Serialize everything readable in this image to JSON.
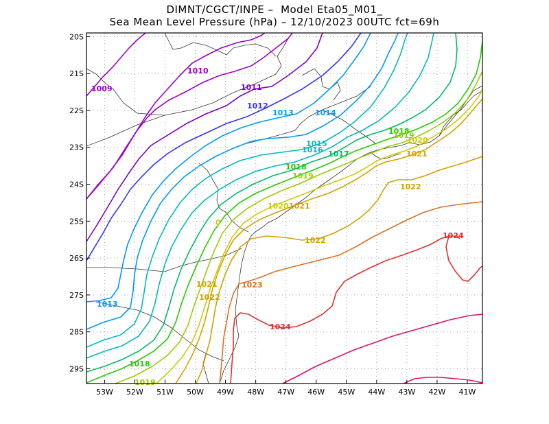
{
  "title_line1": "DIMNT/CGCT/INPE –  Model Eta05_M01_",
  "title_line2": "Sea Mean Level Pressure (hPa) – 12/10/2023 00UTC fct=69h",
  "chart_data": {
    "type": "contour",
    "variable": "Sea Mean Level Pressure",
    "units": "hPa",
    "model": "Eta05_M01_",
    "run": "12/10/2023 00UTC",
    "forecast_hour": "69h",
    "lon_range": [
      -53.6,
      -40.5
    ],
    "lat_range": [
      -29.4,
      -19.9
    ],
    "x_ticks": [
      "53W",
      "52W",
      "51W",
      "50W",
      "49W",
      "48W",
      "47W",
      "46W",
      "45W",
      "44W",
      "43W",
      "42W",
      "41W"
    ],
    "y_ticks": [
      "20S",
      "21S",
      "22S",
      "23S",
      "24S",
      "25S",
      "26S",
      "27S",
      "28S",
      "29S"
    ],
    "contour_labels": [
      {
        "text": "1009",
        "color": "#9900cc"
      },
      {
        "text": "1010",
        "color": "#9900cc"
      },
      {
        "text": "1011",
        "color": "#7a00cc"
      },
      {
        "text": "1012",
        "color": "#3333ff"
      },
      {
        "text": "1013",
        "color": "#0099ff"
      },
      {
        "text": "1014",
        "color": "#0099ff"
      },
      {
        "text": "1015",
        "color": "#00bbbb"
      },
      {
        "text": "1016",
        "color": "#00bbbb"
      },
      {
        "text": "1017",
        "color": "#00bb66"
      },
      {
        "text": "1018",
        "color": "#22cc00"
      },
      {
        "text": "1019",
        "color": "#99cc00"
      },
      {
        "text": "1020",
        "color": "#cccc00"
      },
      {
        "text": "1021",
        "color": "#d4a000"
      },
      {
        "text": "1021",
        "color": "#d4a000"
      },
      {
        "text": "1022",
        "color": "#d4a000"
      },
      {
        "text": "1022",
        "color": "#d4a000"
      },
      {
        "text": "1020",
        "color": "#cccc00"
      },
      {
        "text": "1021",
        "color": "#d4a000"
      },
      {
        "text": "1022",
        "color": "#d4a000"
      },
      {
        "text": "1021",
        "color": "#d4a000"
      },
      {
        "text": "1022",
        "color": "#d4a000"
      },
      {
        "text": "1023",
        "color": "#e07020"
      },
      {
        "text": "1024",
        "color": "#e03030"
      },
      {
        "text": "1024",
        "color": "#e03030"
      },
      {
        "text": "1013",
        "color": "#0099ff"
      },
      {
        "text": "1018",
        "color": "#22cc00"
      },
      {
        "text": "1019",
        "color": "#99cc00"
      },
      {
        "text": "1015",
        "color": "#00bbbb"
      },
      {
        "text": "1016",
        "color": "#00bbbb"
      },
      {
        "text": "1017",
        "color": "#00bb66"
      },
      {
        "text": "1018",
        "color": "#22cc00"
      },
      {
        "text": "1019",
        "color": "#99cc00"
      },
      {
        "text": "0",
        "color": "#cccc00"
      }
    ],
    "contours": [
      {
        "level": 1009,
        "color": "#9900cc"
      },
      {
        "level": 1010,
        "color": "#9900cc"
      },
      {
        "level": 1011,
        "color": "#7a00cc"
      },
      {
        "level": 1012,
        "color": "#3333ff"
      },
      {
        "level": 1013,
        "color": "#0099ff"
      },
      {
        "level": 1014,
        "color": "#0099ff"
      },
      {
        "level": 1015,
        "color": "#00bbbb"
      },
      {
        "level": 1016,
        "color": "#00bbbb"
      },
      {
        "level": 1017,
        "color": "#00bb66"
      },
      {
        "level": 1018,
        "color": "#22cc00"
      },
      {
        "level": 1019,
        "color": "#99cc00"
      },
      {
        "level": 1020,
        "color": "#cccc00"
      },
      {
        "level": 1021,
        "color": "#d4a000"
      },
      {
        "level": 1022,
        "color": "#d4a000"
      },
      {
        "level": 1023,
        "color": "#e07020"
      },
      {
        "level": 1024,
        "color": "#e03030"
      },
      {
        "level": 1025,
        "color": "#e0106a"
      }
    ]
  }
}
